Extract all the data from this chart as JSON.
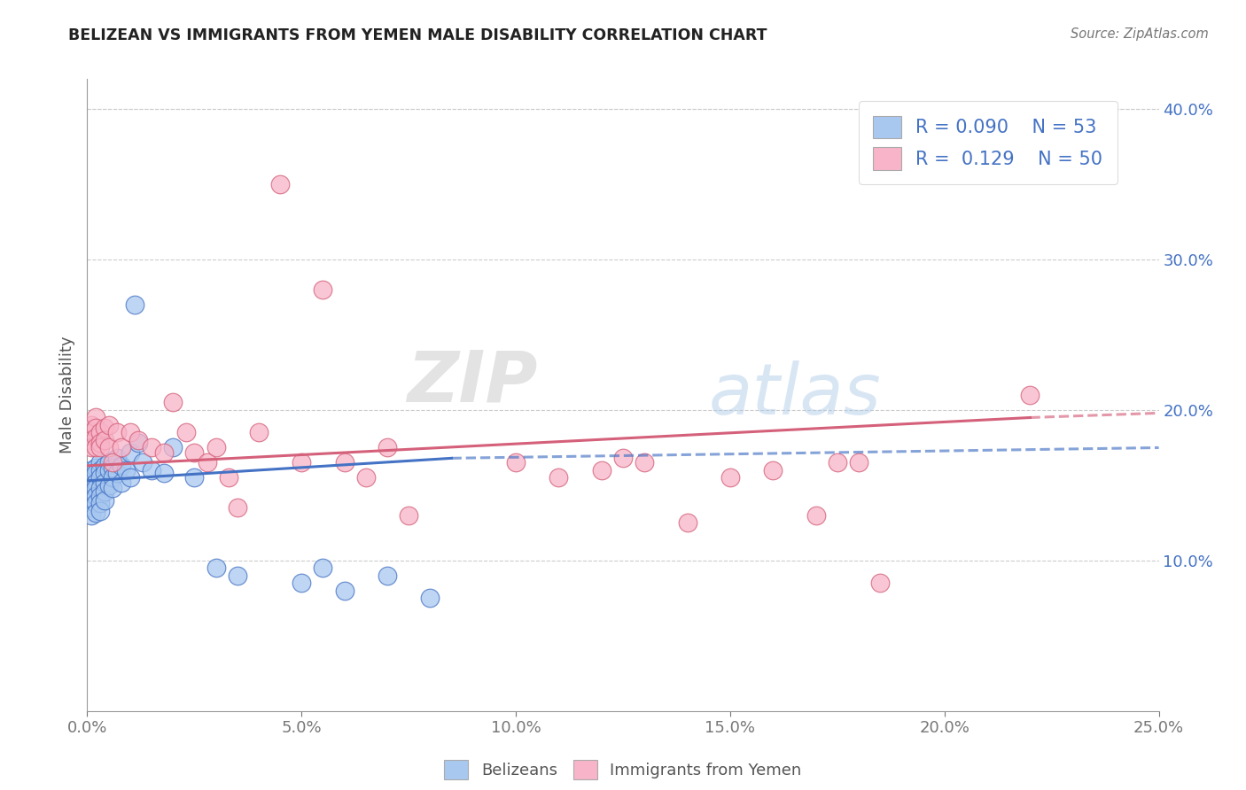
{
  "title": "BELIZEAN VS IMMIGRANTS FROM YEMEN MALE DISABILITY CORRELATION CHART",
  "source_text": "Source: ZipAtlas.com",
  "ylabel": "Male Disability",
  "legend_labels": [
    "Belizeans",
    "Immigrants from Yemen"
  ],
  "blue_R": 0.09,
  "blue_N": 53,
  "pink_R": 0.129,
  "pink_N": 50,
  "xlim": [
    0.0,
    0.25
  ],
  "ylim": [
    0.0,
    0.42
  ],
  "xticks": [
    0.0,
    0.05,
    0.1,
    0.15,
    0.2,
    0.25
  ],
  "yticks": [
    0.1,
    0.2,
    0.3,
    0.4
  ],
  "blue_color": "#A8C8F0",
  "pink_color": "#F8B4C8",
  "blue_line_color": "#4472C4",
  "pink_line_color": "#D4607A",
  "background_color": "#FFFFFF",
  "watermark_zip": "ZIP",
  "watermark_atlas": "atlas",
  "blue_x": [
    0.001,
    0.001,
    0.001,
    0.001,
    0.001,
    0.001,
    0.001,
    0.002,
    0.002,
    0.002,
    0.002,
    0.002,
    0.002,
    0.002,
    0.003,
    0.003,
    0.003,
    0.003,
    0.003,
    0.003,
    0.003,
    0.004,
    0.004,
    0.004,
    0.004,
    0.004,
    0.005,
    0.005,
    0.005,
    0.006,
    0.006,
    0.006,
    0.007,
    0.007,
    0.008,
    0.008,
    0.009,
    0.01,
    0.01,
    0.011,
    0.012,
    0.013,
    0.015,
    0.018,
    0.02,
    0.025,
    0.03,
    0.035,
    0.05,
    0.055,
    0.06,
    0.07,
    0.08
  ],
  "blue_y": [
    0.155,
    0.16,
    0.148,
    0.145,
    0.14,
    0.135,
    0.13,
    0.162,
    0.158,
    0.152,
    0.148,
    0.143,
    0.138,
    0.132,
    0.165,
    0.16,
    0.155,
    0.148,
    0.143,
    0.138,
    0.133,
    0.163,
    0.158,
    0.152,
    0.146,
    0.14,
    0.165,
    0.16,
    0.15,
    0.162,
    0.155,
    0.148,
    0.168,
    0.158,
    0.163,
    0.152,
    0.16,
    0.172,
    0.155,
    0.27,
    0.178,
    0.165,
    0.16,
    0.158,
    0.175,
    0.155,
    0.095,
    0.09,
    0.085,
    0.095,
    0.08,
    0.09,
    0.075
  ],
  "pink_x": [
    0.001,
    0.001,
    0.001,
    0.001,
    0.002,
    0.002,
    0.002,
    0.002,
    0.003,
    0.003,
    0.003,
    0.004,
    0.004,
    0.005,
    0.005,
    0.006,
    0.007,
    0.008,
    0.01,
    0.012,
    0.015,
    0.018,
    0.02,
    0.023,
    0.025,
    0.028,
    0.03,
    0.033,
    0.035,
    0.04,
    0.045,
    0.05,
    0.055,
    0.06,
    0.065,
    0.07,
    0.075,
    0.1,
    0.11,
    0.12,
    0.125,
    0.13,
    0.14,
    0.15,
    0.16,
    0.17,
    0.175,
    0.18,
    0.185,
    0.22
  ],
  "pink_y": [
    0.19,
    0.185,
    0.18,
    0.175,
    0.195,
    0.188,
    0.182,
    0.175,
    0.185,
    0.178,
    0.175,
    0.188,
    0.18,
    0.19,
    0.175,
    0.165,
    0.185,
    0.175,
    0.185,
    0.18,
    0.175,
    0.172,
    0.205,
    0.185,
    0.172,
    0.165,
    0.175,
    0.155,
    0.135,
    0.185,
    0.35,
    0.165,
    0.28,
    0.165,
    0.155,
    0.175,
    0.13,
    0.165,
    0.155,
    0.16,
    0.168,
    0.165,
    0.125,
    0.155,
    0.16,
    0.13,
    0.165,
    0.165,
    0.085,
    0.21
  ]
}
